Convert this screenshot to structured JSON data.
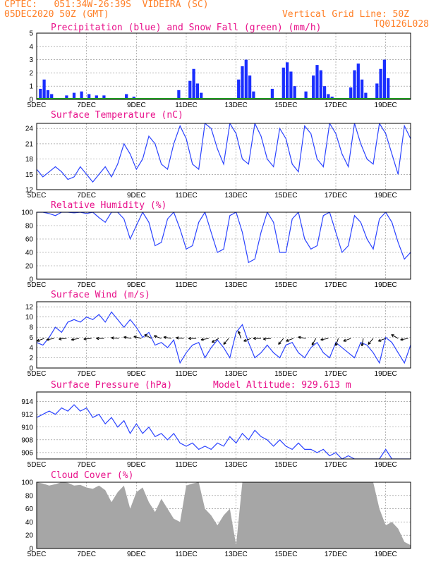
{
  "header": {
    "line1": "CPTEC:   051:34W-26:39S  VIDEIRA (SC)",
    "line2": "05DEC2020 50Z (GMT)",
    "grid_note": "Vertical Grid Line: 50Z",
    "code": "TQ0126L028"
  },
  "colors": {
    "header": "#ff7f27",
    "title": "#e8108a",
    "line": "#2b43ff",
    "bar": "#1a2eff",
    "snow": "#22aa22",
    "cloud": "#a6a6a6",
    "grid": "#888888"
  },
  "x_axis": {
    "start": 0,
    "end": 15,
    "ticks": [
      0,
      2,
      4,
      6,
      8,
      10,
      12,
      14
    ],
    "tick_labels": [
      "5DEC",
      "7DEC",
      "9DEC",
      "11DEC",
      "13DEC",
      "15DEC",
      "17DEC",
      "19DEC"
    ]
  },
  "chart_data": [
    {
      "id": "precip",
      "type": "bar",
      "title": "Precipitation (blue) and Snow Fall (green) (mm/h)",
      "ylim": [
        0,
        5
      ],
      "yticks": [
        0,
        1,
        2,
        3,
        4,
        5
      ],
      "grid": true,
      "x": [
        0.15,
        0.3,
        0.45,
        0.6,
        1.2,
        1.5,
        1.8,
        2.1,
        2.4,
        2.7,
        3.6,
        3.9,
        5.7,
        6.15,
        6.3,
        6.45,
        6.6,
        8.1,
        8.25,
        8.4,
        8.55,
        8.7,
        9.45,
        9.9,
        10.05,
        10.2,
        10.35,
        10.8,
        11.1,
        11.25,
        11.4,
        11.55,
        11.7,
        11.85,
        12.6,
        12.75,
        12.9,
        13.05,
        13.2,
        13.65,
        13.8,
        13.95,
        14.1
      ],
      "precip": [
        0.8,
        1.5,
        0.7,
        0.4,
        0.3,
        0.5,
        0.6,
        0.4,
        0.3,
        0.3,
        0.4,
        0.2,
        0.7,
        1.4,
        2.3,
        1.2,
        0.5,
        1.5,
        2.5,
        3.0,
        1.8,
        0.6,
        0.8,
        2.4,
        2.8,
        2.1,
        1.0,
        0.6,
        1.8,
        2.6,
        2.2,
        1.0,
        0.4,
        0.2,
        0.9,
        2.2,
        2.7,
        1.5,
        0.5,
        1.2,
        2.3,
        3.0,
        1.6
      ],
      "snow": 0
    },
    {
      "id": "temp",
      "type": "line",
      "title": "Surface Temperature (nC)",
      "ylim": [
        12,
        25
      ],
      "yticks": [
        12,
        15,
        18,
        21,
        24
      ],
      "grid": true,
      "x": [
        0,
        0.25,
        0.5,
        0.75,
        1,
        1.25,
        1.5,
        1.75,
        2,
        2.25,
        2.5,
        2.75,
        3,
        3.25,
        3.5,
        3.75,
        4,
        4.25,
        4.5,
        4.75,
        5,
        5.25,
        5.5,
        5.75,
        6,
        6.25,
        6.5,
        6.75,
        7,
        7.25,
        7.5,
        7.75,
        8,
        8.25,
        8.5,
        8.75,
        9,
        9.25,
        9.5,
        9.75,
        10,
        10.25,
        10.5,
        10.75,
        11,
        11.25,
        11.5,
        11.75,
        12,
        12.25,
        12.5,
        12.75,
        13,
        13.25,
        13.5,
        13.75,
        14,
        14.25,
        14.5,
        14.75,
        15
      ],
      "values": [
        16,
        14.5,
        15.5,
        16.5,
        15.5,
        14,
        14.5,
        16.5,
        15,
        13.5,
        15,
        16.5,
        14.5,
        17,
        21,
        19,
        16,
        18,
        22.5,
        21,
        17,
        16,
        21,
        24.5,
        22,
        17,
        16,
        25,
        24,
        20,
        17,
        25,
        23,
        18,
        17,
        25,
        22.5,
        18,
        16.5,
        24,
        22,
        17,
        15.5,
        24.5,
        23,
        18,
        16.5,
        25,
        23,
        19,
        16.5,
        25,
        21,
        18,
        17,
        25,
        23,
        19,
        15,
        24.5,
        22
      ]
    },
    {
      "id": "rh",
      "type": "line",
      "title": "Relative Humidity (%)",
      "ylim": [
        0,
        100
      ],
      "yticks": [
        0,
        20,
        40,
        60,
        80,
        100
      ],
      "grid": true,
      "x": [
        0,
        0.25,
        0.5,
        0.75,
        1,
        1.25,
        1.5,
        1.75,
        2,
        2.25,
        2.5,
        2.75,
        3,
        3.25,
        3.5,
        3.75,
        4,
        4.25,
        4.5,
        4.75,
        5,
        5.25,
        5.5,
        5.75,
        6,
        6.25,
        6.5,
        6.75,
        7,
        7.25,
        7.5,
        7.75,
        8,
        8.25,
        8.5,
        8.75,
        9,
        9.25,
        9.5,
        9.75,
        10,
        10.25,
        10.5,
        10.75,
        11,
        11.25,
        11.5,
        11.75,
        12,
        12.25,
        12.5,
        12.75,
        13,
        13.25,
        13.5,
        13.75,
        14,
        14.25,
        14.5,
        14.75,
        15
      ],
      "values": [
        100,
        100,
        98,
        95,
        100,
        100,
        99,
        100,
        98,
        100,
        92,
        85,
        100,
        100,
        90,
        60,
        80,
        100,
        85,
        50,
        55,
        90,
        100,
        75,
        45,
        50,
        85,
        100,
        70,
        40,
        45,
        95,
        100,
        70,
        25,
        30,
        70,
        100,
        85,
        40,
        40,
        90,
        100,
        60,
        45,
        50,
        95,
        100,
        70,
        40,
        50,
        95,
        85,
        60,
        45,
        90,
        100,
        85,
        55,
        30,
        40
      ]
    },
    {
      "id": "wind",
      "type": "line",
      "title": "Surface Wind (m/s)",
      "ylim": [
        0,
        13
      ],
      "yticks": [
        0,
        2,
        4,
        6,
        8,
        10,
        12
      ],
      "grid": true,
      "x": [
        0,
        0.25,
        0.5,
        0.75,
        1,
        1.25,
        1.5,
        1.75,
        2,
        2.25,
        2.5,
        2.75,
        3,
        3.25,
        3.5,
        3.75,
        4,
        4.25,
        4.5,
        4.75,
        5,
        5.25,
        5.5,
        5.75,
        6,
        6.25,
        6.5,
        6.75,
        7,
        7.25,
        7.5,
        7.75,
        8,
        8.25,
        8.5,
        8.75,
        9,
        9.25,
        9.5,
        9.75,
        10,
        10.25,
        10.5,
        10.75,
        11,
        11.25,
        11.5,
        11.75,
        12,
        12.25,
        12.5,
        12.75,
        13,
        13.25,
        13.5,
        13.75,
        14,
        14.25,
        14.5,
        14.75,
        15
      ],
      "values": [
        5,
        4.5,
        6,
        8,
        7,
        9,
        9.5,
        9,
        10,
        9.5,
        10.5,
        9,
        11,
        9.5,
        8,
        9.5,
        8,
        6,
        7,
        4.5,
        5,
        4,
        5.5,
        1,
        3,
        4.5,
        5,
        2,
        4,
        5.5,
        4,
        2,
        7,
        8.5,
        5,
        2,
        3,
        4.5,
        3,
        2,
        4.5,
        5,
        3,
        2,
        4,
        5,
        3,
        2,
        5,
        4,
        3,
        2,
        5,
        4.5,
        3,
        1,
        6,
        5,
        3,
        1,
        4.5
      ],
      "arrows_x": [
        0.3,
        0.7,
        1.2,
        1.7,
        2.2,
        2.7,
        3.3,
        3.8,
        4.2,
        4.6,
        5.0,
        5.4,
        5.9,
        6.4,
        6.9,
        7.3,
        7.7,
        8.2,
        8.6,
        9.0,
        9.4,
        9.9,
        10.3,
        10.8,
        11.2,
        11.7,
        12.1,
        12.6,
        13.1,
        13.5,
        14.0,
        14.5,
        14.9
      ],
      "arrows_dir": [
        200,
        190,
        185,
        190,
        185,
        180,
        175,
        170,
        165,
        150,
        160,
        170,
        175,
        180,
        190,
        210,
        230,
        110,
        200,
        180,
        185,
        230,
        200,
        170,
        240,
        190,
        250,
        200,
        260,
        230,
        200,
        150,
        190
      ]
    },
    {
      "id": "pressure",
      "type": "line",
      "title": "Surface Pressure (hPa)",
      "annotation": "Model Altitude: 929.613 m",
      "ylim": [
        905,
        915.5
      ],
      "yticks": [
        906,
        908,
        910,
        912,
        914
      ],
      "grid": true,
      "x": [
        0,
        0.25,
        0.5,
        0.75,
        1,
        1.25,
        1.5,
        1.75,
        2,
        2.25,
        2.5,
        2.75,
        3,
        3.25,
        3.5,
        3.75,
        4,
        4.25,
        4.5,
        4.75,
        5,
        5.25,
        5.5,
        5.75,
        6,
        6.25,
        6.5,
        6.75,
        7,
        7.25,
        7.5,
        7.75,
        8,
        8.25,
        8.5,
        8.75,
        9,
        9.25,
        9.5,
        9.75,
        10,
        10.25,
        10.5,
        10.75,
        11,
        11.25,
        11.5,
        11.75,
        12,
        12.25,
        12.5,
        12.75,
        13,
        13.25,
        13.5,
        13.75,
        14,
        14.25,
        14.5,
        14.75,
        15
      ],
      "values": [
        911.5,
        912,
        912.5,
        912,
        913,
        912.5,
        913.5,
        912.5,
        913,
        911.5,
        912,
        910.5,
        911.5,
        910,
        911,
        909,
        910.5,
        909,
        910,
        908.5,
        909,
        908,
        909,
        907.5,
        907,
        907.5,
        906.5,
        907,
        906.5,
        907.5,
        907,
        908.5,
        907.5,
        909,
        908,
        909.5,
        908.5,
        908,
        907,
        908,
        907,
        906.5,
        907.5,
        906.5,
        906.5,
        906,
        906.5,
        905.5,
        906,
        905,
        905.5,
        905,
        905,
        905,
        905,
        905,
        906.5,
        905,
        905,
        905,
        905
      ]
    },
    {
      "id": "cloud",
      "type": "area",
      "title": "Cloud Cover (%)",
      "ylim": [
        0,
        100
      ],
      "yticks": [
        0,
        20,
        40,
        60,
        80,
        100
      ],
      "grid": true,
      "x": [
        0,
        0.25,
        0.5,
        0.75,
        1,
        1.25,
        1.5,
        1.75,
        2,
        2.25,
        2.5,
        2.75,
        3,
        3.25,
        3.5,
        3.75,
        4,
        4.25,
        4.5,
        4.75,
        5,
        5.25,
        5.5,
        5.75,
        6,
        6.25,
        6.5,
        6.75,
        7,
        7.25,
        7.5,
        7.75,
        8,
        8.25,
        8.5,
        8.75,
        9,
        9.25,
        9.5,
        9.75,
        10,
        10.25,
        10.5,
        10.75,
        11,
        11.25,
        11.5,
        11.75,
        12,
        12.25,
        12.5,
        12.75,
        13,
        13.25,
        13.5,
        13.75,
        14,
        14.25,
        14.5,
        14.75,
        15
      ],
      "values": [
        100,
        98,
        95,
        97,
        100,
        99,
        95,
        96,
        92,
        90,
        95,
        88,
        70,
        85,
        95,
        60,
        85,
        92,
        70,
        55,
        75,
        60,
        45,
        40,
        95,
        98,
        100,
        60,
        50,
        35,
        50,
        60,
        5,
        100,
        100,
        100,
        100,
        100,
        100,
        100,
        100,
        100,
        100,
        100,
        100,
        100,
        100,
        100,
        100,
        100,
        100,
        100,
        100,
        100,
        100,
        60,
        35,
        40,
        30,
        10,
        5
      ]
    }
  ]
}
